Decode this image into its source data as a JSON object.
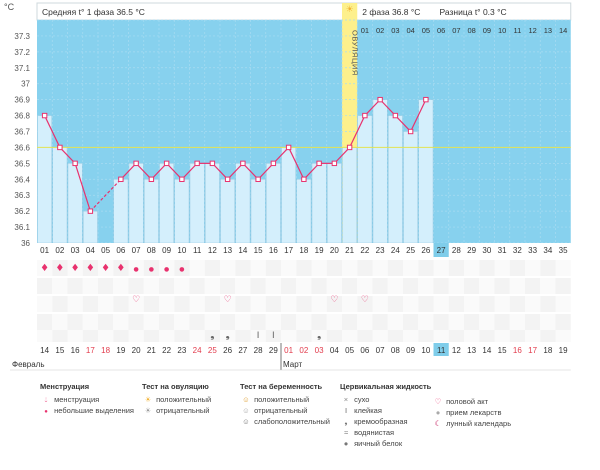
{
  "chart_data": {
    "type": "line",
    "y_unit": "°C",
    "ylim": [
      36,
      37.4
    ],
    "y_ticks": [
      "37.3",
      "37.2",
      "37.1",
      "37",
      "36.9",
      "36.8",
      "36.7",
      "36.6",
      "36.5",
      "36.4",
      "36.3",
      "36.2",
      "36.1",
      "36"
    ],
    "phase1_label": "Средняя t° 1 фаза 36.5 °C",
    "phase2_label": "2 фаза 36.8 °C",
    "diff_label": "Разница t° 0.3 °C",
    "ovulation_label": "ОВУЛЯЦИЯ",
    "ovulation_day": 21,
    "average_line": 36.6,
    "cycle_days": [
      1,
      2,
      3,
      4,
      5,
      6,
      7,
      8,
      9,
      10,
      11,
      12,
      13,
      14,
      15,
      16,
      17,
      18,
      19,
      20,
      21,
      22,
      23,
      24,
      25,
      26,
      27,
      28,
      29,
      30,
      31,
      32,
      33,
      34,
      35
    ],
    "current_day": 27,
    "phase2_days": [
      "01",
      "02",
      "03",
      "04",
      "05",
      "06",
      "07",
      "08",
      "09",
      "10",
      "11",
      "12",
      "13",
      "14"
    ],
    "temperatures": [
      36.8,
      36.6,
      36.5,
      36.2,
      null,
      36.4,
      36.5,
      36.4,
      36.5,
      36.4,
      36.5,
      36.5,
      36.4,
      36.5,
      36.4,
      36.5,
      36.6,
      36.4,
      36.5,
      36.5,
      36.6,
      36.8,
      36.9,
      36.8,
      36.7,
      36.9
    ],
    "dates": [
      "14",
      "15",
      "16",
      "17",
      "18",
      "19",
      "20",
      "21",
      "22",
      "23",
      "24",
      "25",
      "26",
      "27",
      "28",
      "29",
      "01",
      "02",
      "03",
      "04",
      "05",
      "06",
      "07",
      "08",
      "09",
      "10",
      "11",
      "12",
      "13",
      "14",
      "15",
      "16",
      "17",
      "18",
      "19"
    ],
    "red_dates": [
      4,
      5,
      11,
      12,
      17,
      18,
      19,
      32,
      33
    ],
    "months": [
      {
        "label": "Февраль",
        "day": 1
      },
      {
        "label": "Март",
        "day": 17
      }
    ],
    "menstruation": [
      1,
      2,
      3,
      4,
      5,
      6,
      7,
      8,
      9,
      10
    ],
    "menstruation_big": [
      1,
      2,
      3,
      4,
      5,
      6
    ],
    "intercourse": [
      7,
      13,
      20,
      22
    ],
    "mucus_sticky": [
      15,
      16
    ],
    "mucus_creamy": [
      12,
      13,
      19
    ],
    "grid": true
  },
  "legend": {
    "menstruation": {
      "title": "Менструация",
      "items": [
        "менструация",
        "небольшие выделения"
      ]
    },
    "ovulation_test": {
      "title": "Тест на овуляцию",
      "items": [
        "положительный",
        "отрицательный"
      ]
    },
    "pregnancy_test": {
      "title": "Тест на беременность",
      "items": [
        "положительный",
        "отрицательный",
        "слабоположительный"
      ]
    },
    "cervical_fluid": {
      "title": "Цервикальная жидкость",
      "items": [
        "сухо",
        "клейкая",
        "кремообразная",
        "водянистая",
        "яичный белок"
      ]
    },
    "other": {
      "items": [
        "половой акт",
        "прием лекарств",
        "лунный календарь"
      ]
    }
  },
  "colors": {
    "plot_bg": "#87d1ee",
    "bar": "#d4effc",
    "bar_edge": "#8fc4dc",
    "line": "#e8326e",
    "ovulation": "#fdf08c",
    "avg_line": "#e3e352",
    "current": "#7fcdea",
    "red_text": "#e23b4c"
  }
}
